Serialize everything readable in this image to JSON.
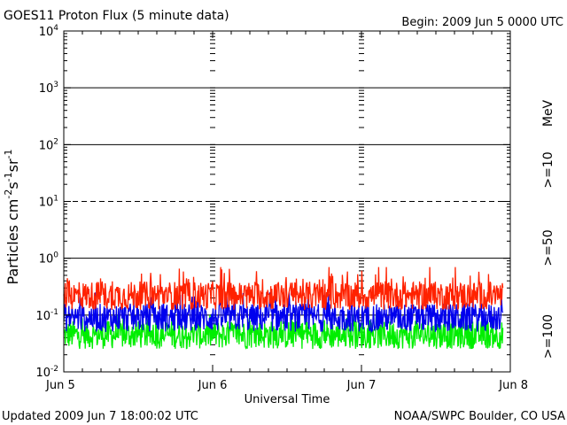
{
  "chart_data": {
    "type": "line",
    "title": "GOES11 Proton Flux (5 minute data)",
    "begin_label": "Begin: 2009 Jun 5 0000 UTC",
    "xlabel": "Universal Time",
    "ylabel": "Particles cm",
    "ylabel_parts": {
      "main": "Particles cm",
      "exp1": "-2",
      "s": "s",
      "exp2": "-1",
      "sr": "sr",
      "exp3": "-1"
    },
    "x_ticks": [
      "Jun 5",
      "Jun 6",
      "Jun 7",
      "Jun 8"
    ],
    "x_range_days": [
      0,
      3
    ],
    "y_scale": "log",
    "ylim": [
      0.01,
      10000
    ],
    "y_ticks": [
      {
        "base": "10",
        "exp": "-2"
      },
      {
        "base": "10",
        "exp": "-1"
      },
      {
        "base": "10",
        "exp": "0"
      },
      {
        "base": "10",
        "exp": "1"
      },
      {
        "base": "10",
        "exp": "2"
      },
      {
        "base": "10",
        "exp": "3"
      },
      {
        "base": "10",
        "exp": "4"
      }
    ],
    "threshold_lines": [
      {
        "value": 10,
        "style": "dashed"
      },
      {
        "value": 100,
        "style": "solid"
      },
      {
        "value": 1000,
        "style": "solid"
      },
      {
        "value": 1,
        "style": "solid"
      },
      {
        "value": 0.1,
        "style": "solid"
      }
    ],
    "series": [
      {
        "name": ">=10",
        "color": "#ff2200",
        "baseline": 0.22,
        "range": [
          0.12,
          0.7
        ]
      },
      {
        "name": ">=50",
        "color": "#0000ee",
        "baseline": 0.09,
        "range": [
          0.05,
          0.25
        ]
      },
      {
        "name": ">=100",
        "color": "#00ee00",
        "baseline": 0.045,
        "range": [
          0.025,
          0.1
        ]
      }
    ],
    "right_unit_label": "MeV",
    "updated": "Updated 2009 Jun  7 18:00:02 UTC",
    "credit": "NOAA/SWPC Boulder, CO USA"
  }
}
